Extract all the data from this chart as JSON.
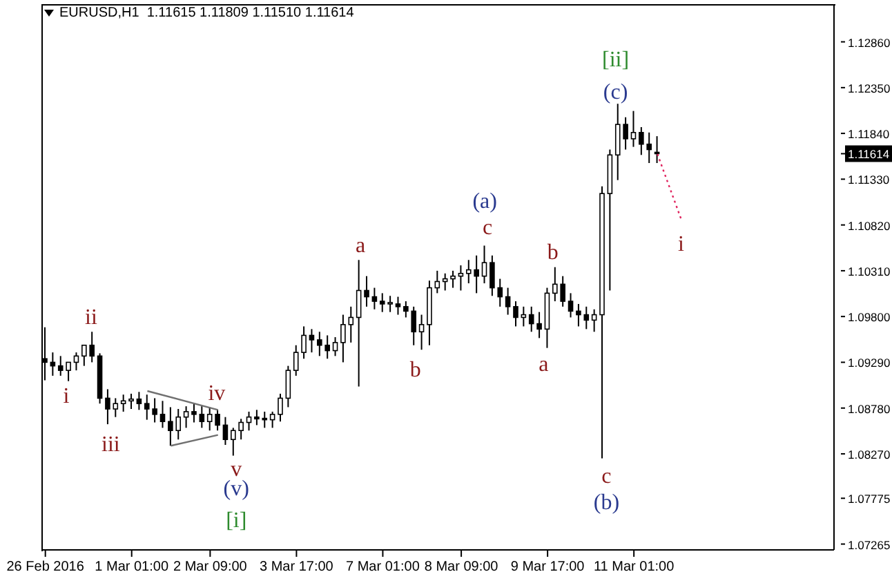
{
  "chart_data": {
    "type": "candlestick",
    "title": "EURUSD,H1  1.11615 1.11809 1.11510 1.11614",
    "color": "#000000",
    "categories": [
      "26 Feb 2016",
      null,
      null,
      null,
      null,
      null,
      null,
      null,
      null,
      null,
      null,
      "1 Mar 01:00",
      null,
      null,
      null,
      null,
      null,
      null,
      null,
      null,
      null,
      "2 Mar 09:00",
      null,
      null,
      null,
      null,
      null,
      null,
      null,
      null,
      null,
      null,
      "3 Mar 17:00",
      null,
      null,
      null,
      null,
      null,
      null,
      null,
      null,
      null,
      null,
      "7 Mar 01:00",
      null,
      null,
      null,
      null,
      null,
      null,
      null,
      null,
      null,
      "8 Mar 09:00",
      null,
      null,
      null,
      null,
      null,
      null,
      null,
      null,
      null,
      null,
      "9 Mar 17:00",
      null,
      null,
      null,
      null,
      null,
      null,
      null,
      null,
      null,
      null,
      "11 Mar 01:00",
      null,
      null,
      null,
      null,
      null,
      null,
      null,
      null,
      null,
      null,
      null,
      null,
      null,
      null,
      null,
      null,
      null,
      null,
      null,
      null,
      null,
      null,
      null,
      null,
      null
    ],
    "ohlc": [
      [
        1.0933,
        1.0968,
        1.0909,
        1.0929
      ],
      [
        1.0929,
        1.094,
        1.0914,
        1.0925
      ],
      [
        1.0925,
        1.0936,
        1.0914,
        1.092
      ],
      [
        1.092,
        1.0929,
        1.0908,
        1.0929
      ],
      [
        1.0929,
        1.094,
        1.092,
        1.0936
      ],
      [
        1.0936,
        1.0948,
        1.0925,
        1.0948
      ],
      [
        1.0948,
        1.0963,
        1.0929,
        1.0936
      ],
      [
        1.0936,
        1.0939,
        1.0883,
        1.0889
      ],
      [
        1.0889,
        1.0899,
        1.086,
        1.0877
      ],
      [
        1.0877,
        1.0889,
        1.0868,
        1.0883
      ],
      [
        1.0883,
        1.0893,
        1.0874,
        1.0886
      ],
      [
        1.0886,
        1.0894,
        1.0877,
        1.0888
      ],
      [
        1.0888,
        1.0896,
        1.0876,
        1.0883
      ],
      [
        1.0883,
        1.0893,
        1.0865,
        1.0877
      ],
      [
        1.0877,
        1.0889,
        1.0862,
        1.0871
      ],
      [
        1.0871,
        1.0886,
        1.0856,
        1.0863
      ],
      [
        1.0863,
        1.0879,
        1.0836,
        1.0853
      ],
      [
        1.0853,
        1.0877,
        1.0843,
        1.0868
      ],
      [
        1.0868,
        1.088,
        1.0856,
        1.0874
      ],
      [
        1.0874,
        1.0883,
        1.0862,
        1.0871
      ],
      [
        1.0871,
        1.088,
        1.0856,
        1.0863
      ],
      [
        1.0863,
        1.0879,
        1.0853,
        1.0871
      ],
      [
        1.0871,
        1.0876,
        1.0853,
        1.0859
      ],
      [
        1.0859,
        1.0868,
        1.0837,
        1.0843
      ],
      [
        1.0843,
        1.0856,
        1.0825,
        1.0853
      ],
      [
        1.0853,
        1.0866,
        1.0843,
        1.0862
      ],
      [
        1.0862,
        1.0874,
        1.0853,
        1.0868
      ],
      [
        1.0868,
        1.0876,
        1.0859,
        1.0866
      ],
      [
        1.0866,
        1.0874,
        1.0856,
        1.0865
      ],
      [
        1.0865,
        1.0874,
        1.0856,
        1.0871
      ],
      [
        1.0871,
        1.0894,
        1.0863,
        1.0889
      ],
      [
        1.0889,
        1.0925,
        1.0879,
        1.092
      ],
      [
        1.092,
        1.0948,
        1.0914,
        1.094
      ],
      [
        1.094,
        1.0969,
        1.0933,
        1.0959
      ],
      [
        1.0959,
        1.0966,
        1.094,
        1.0954
      ],
      [
        1.0954,
        1.0963,
        1.0936,
        1.0948
      ],
      [
        1.0948,
        1.0959,
        1.0933,
        1.0942
      ],
      [
        1.0942,
        1.0957,
        1.0936,
        1.0951
      ],
      [
        1.0951,
        1.0982,
        1.0929,
        1.0971
      ],
      [
        1.0971,
        1.0991,
        1.0951,
        1.0979
      ],
      [
        1.0979,
        1.1043,
        1.0902,
        1.1009
      ],
      [
        1.1009,
        1.1025,
        1.0991,
        1.1002
      ],
      [
        1.1002,
        1.1012,
        1.0988,
        1.0997
      ],
      [
        1.0997,
        1.1006,
        1.0985,
        1.0994
      ],
      [
        1.0994,
        1.1003,
        1.0985,
        1.0994
      ],
      [
        1.0994,
        1.1002,
        1.0982,
        1.0991
      ],
      [
        1.0991,
        1.0997,
        1.0979,
        1.0986
      ],
      [
        1.0986,
        1.0991,
        1.0948,
        1.0963
      ],
      [
        1.0963,
        1.0982,
        1.0943,
        1.0971
      ],
      [
        1.0971,
        1.102,
        1.0948,
        1.1012
      ],
      [
        1.1012,
        1.1031,
        1.1006,
        1.1019
      ],
      [
        1.1019,
        1.1028,
        1.1009,
        1.1022
      ],
      [
        1.1022,
        1.1031,
        1.1012,
        1.1025
      ],
      [
        1.1025,
        1.1037,
        1.1009,
        1.1028
      ],
      [
        1.1028,
        1.1043,
        1.1017,
        1.1032
      ],
      [
        1.1032,
        1.1048,
        1.1006,
        1.1025
      ],
      [
        1.1025,
        1.1059,
        1.1017,
        1.104
      ],
      [
        1.104,
        1.1048,
        1.1003,
        1.1012
      ],
      [
        1.1012,
        1.1022,
        1.0991,
        1.1002
      ],
      [
        1.1002,
        1.1012,
        1.0982,
        1.0991
      ],
      [
        1.0991,
        1.0997,
        1.0969,
        1.0979
      ],
      [
        1.0979,
        1.0991,
        1.0969,
        1.0982
      ],
      [
        1.0982,
        1.0991,
        1.0963,
        1.0972
      ],
      [
        1.0972,
        1.0985,
        1.0956,
        1.0966
      ],
      [
        1.0966,
        1.1012,
        1.0945,
        1.1006
      ],
      [
        1.1006,
        1.1035,
        1.0997,
        1.1016
      ],
      [
        1.1016,
        1.1025,
        1.0991,
        1.0997
      ],
      [
        1.0997,
        1.1006,
        1.0979,
        1.0986
      ],
      [
        1.0986,
        1.0994,
        1.0969,
        1.0982
      ],
      [
        1.0982,
        1.0991,
        1.0966,
        1.0976
      ],
      [
        1.0976,
        1.0988,
        1.0963,
        1.0982
      ],
      [
        1.0982,
        1.1125,
        1.0822,
        1.1117
      ],
      [
        1.1117,
        1.1166,
        1.1009,
        1.116
      ],
      [
        1.116,
        1.1217,
        1.1132,
        1.1194
      ],
      [
        1.1194,
        1.1202,
        1.1166,
        1.1178
      ],
      [
        1.1178,
        1.1209,
        1.1169,
        1.1185
      ],
      [
        1.1185,
        1.1191,
        1.116,
        1.1172
      ],
      [
        1.1172,
        1.1185,
        1.1151,
        1.1166
      ],
      [
        1.11615,
        1.11809,
        1.1151,
        1.11614
      ],
      null,
      null,
      null,
      null,
      null,
      null,
      null,
      null,
      null,
      null,
      null,
      null,
      null,
      null,
      null,
      null,
      null,
      null,
      null,
      null,
      null,
      null
    ],
    "series": [
      {
        "type": "line",
        "color": "#e0245e",
        "line_style": "dotted",
        "values": [
          null,
          null,
          null,
          null,
          null,
          null,
          null,
          null,
          null,
          null,
          null,
          null,
          null,
          null,
          null,
          null,
          null,
          null,
          null,
          null,
          null,
          null,
          null,
          null,
          null,
          null,
          null,
          null,
          null,
          null,
          null,
          null,
          null,
          null,
          null,
          null,
          null,
          null,
          null,
          null,
          null,
          null,
          null,
          null,
          null,
          null,
          null,
          null,
          null,
          null,
          null,
          null,
          null,
          null,
          null,
          null,
          null,
          null,
          null,
          null,
          null,
          null,
          null,
          null,
          null,
          null,
          null,
          null,
          null,
          null,
          null,
          null,
          null,
          null,
          null,
          null,
          null,
          null,
          1.1161,
          null,
          null,
          1.1089,
          null,
          null,
          null,
          null,
          null,
          null,
          null,
          null,
          null,
          null,
          null,
          null,
          null,
          null,
          null,
          null,
          null,
          null,
          null
        ]
      },
      {
        "type": "line",
        "color": "#707070",
        "line_style": "solid",
        "values": [
          null,
          null,
          null,
          null,
          null,
          null,
          null,
          null,
          null,
          null,
          null,
          null,
          null,
          1.0897,
          null,
          null,
          null,
          null,
          null,
          null,
          null,
          null,
          1.0876,
          null,
          null,
          null,
          null,
          null,
          null,
          null,
          null,
          null,
          null,
          null,
          null,
          null,
          null,
          null,
          null,
          null,
          null,
          null,
          null,
          null,
          null,
          null,
          null,
          null,
          null,
          null,
          null,
          null,
          null,
          null,
          null,
          null,
          null,
          null,
          null,
          null,
          null,
          null,
          null,
          null,
          null,
          null,
          null,
          null,
          null,
          null,
          null,
          null,
          null,
          null,
          null,
          null,
          null,
          null,
          null,
          null,
          null,
          null,
          null,
          null,
          null,
          null,
          null,
          null,
          null,
          null,
          null,
          null,
          null,
          null,
          null,
          null,
          null,
          null,
          null,
          null,
          null
        ]
      },
      {
        "type": "line",
        "color": "#707070",
        "line_style": "solid",
        "values": [
          null,
          null,
          null,
          null,
          null,
          null,
          null,
          null,
          null,
          null,
          null,
          null,
          null,
          null,
          null,
          null,
          1.0836,
          null,
          null,
          null,
          null,
          null,
          1.0848,
          null,
          null,
          null,
          null,
          null,
          null,
          null,
          null,
          null,
          null,
          null,
          null,
          null,
          null,
          null,
          null,
          null,
          null,
          null,
          null,
          null,
          null,
          null,
          null,
          null,
          null,
          null,
          null,
          null,
          null,
          null,
          null,
          null,
          null,
          null,
          null,
          null,
          null,
          null,
          null,
          null,
          null,
          null,
          null,
          null,
          null,
          null,
          null,
          null,
          null,
          null,
          null,
          null,
          null,
          null,
          null,
          null,
          null,
          null,
          null,
          null,
          null,
          null,
          null,
          null,
          null,
          null,
          null,
          null,
          null,
          null,
          null,
          null,
          null,
          null,
          null,
          null,
          null
        ]
      }
    ],
    "ylim": [
      1.072,
      1.1328
    ],
    "yticks": [
      {
        "value": 1.07265,
        "label": "1.07265"
      },
      {
        "value": 1.07775,
        "label": "1.07775"
      },
      {
        "value": 1.0827,
        "label": "1.08270"
      },
      {
        "value": 1.0878,
        "label": "1.08780"
      },
      {
        "value": 1.0929,
        "label": "1.09290"
      },
      {
        "value": 1.098,
        "label": "1.09800"
      },
      {
        "value": 1.1031,
        "label": "1.10310"
      },
      {
        "value": 1.1082,
        "label": "1.10820"
      },
      {
        "value": 1.1133,
        "label": "1.11330"
      },
      {
        "value": 1.11614,
        "label": "1.11614"
      },
      {
        "value": 1.1184,
        "label": "1.11840"
      },
      {
        "value": 1.1235,
        "label": "1.12350"
      },
      {
        "value": 1.1286,
        "label": "1.12860"
      }
    ],
    "annotations": [
      "i",
      "ii",
      "iii",
      "iv",
      "v",
      "(v)",
      "[i]",
      "a",
      "b",
      "(a)",
      "c",
      "a",
      "b",
      "c",
      "(b)",
      "(c)",
      "[ii]",
      "i"
    ]
  }
}
